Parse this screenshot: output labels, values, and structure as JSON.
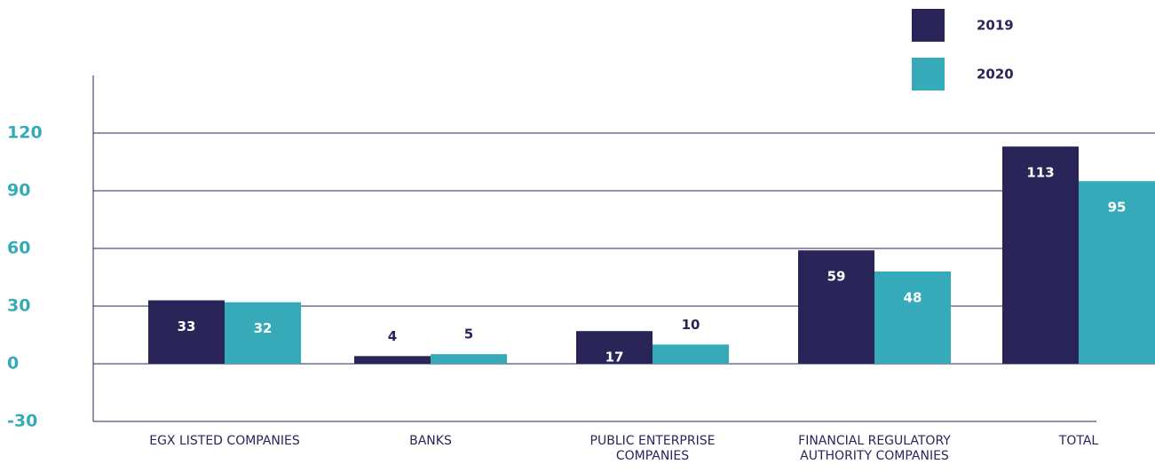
{
  "chart_data": {
    "type": "bar",
    "categories": [
      "EGX LISTED COMPANIES",
      "BANKS",
      "PUBLIC ENTERPRISE COMPANIES",
      "FINANCIAL REGULATORY AUTHORITY COMPANIES",
      "TOTAL"
    ],
    "series": [
      {
        "name": "2019",
        "color": "#2a2559",
        "values": [
          33,
          4,
          17,
          59,
          113
        ]
      },
      {
        "name": "2020",
        "color": "#36aab8",
        "values": [
          32,
          5,
          10,
          48,
          95
        ]
      }
    ],
    "ylim": [
      -30,
      150
    ],
    "yticks": [
      -30,
      0,
      30,
      60,
      90,
      120
    ],
    "grid": true,
    "legend": "top-right"
  }
}
